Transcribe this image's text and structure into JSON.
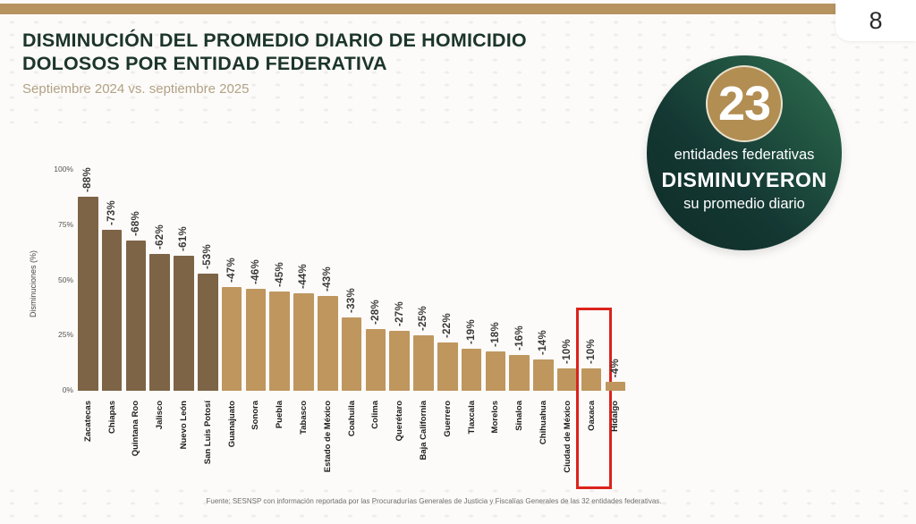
{
  "page": {
    "number": "8"
  },
  "theme": {
    "top_bar_color": "#b7935f",
    "title_color": "#1c352b",
    "subtitle_color": "#b2a185"
  },
  "header": {
    "title_line1": "DISMINUCIÓN DEL PROMEDIO DIARIO DE HOMICIDIO",
    "title_line2": "DOLOSOS POR ENTIDAD FEDERATIVA",
    "subtitle": "Septiembre 2024 vs. septiembre 2025"
  },
  "badge": {
    "count": "23",
    "line1": "entidades federativas",
    "line2": "DISMINUYERON",
    "line3": "su promedio diario",
    "circle_color_dark": "#0f2c27",
    "circle_color_mid": "#143833",
    "circle_color_light": "#2f7050",
    "inner_circle_color": "#b28e52"
  },
  "chart_data": {
    "type": "bar",
    "title": "",
    "xlabel": "",
    "ylabel": "Disminuciones (%)",
    "ylim": [
      0,
      100
    ],
    "yticks": [
      0,
      25,
      50,
      75,
      100
    ],
    "grid": false,
    "legend": false,
    "categories": [
      "Zacatecas",
      "Chiapas",
      "Quintana Roo",
      "Jalisco",
      "Nuevo León",
      "San Luis Potosí",
      "Guanajuato",
      "Sonora",
      "Puebla",
      "Tabasco",
      "Estado de México",
      "Coahuila",
      "Colima",
      "Querétaro",
      "Baja California",
      "Guerrero",
      "Tlaxcala",
      "Morelos",
      "Sinaloa",
      "Chihuahua",
      "Ciudad de México",
      "Oaxaca",
      "Hidalgo"
    ],
    "values": [
      -88,
      -73,
      -68,
      -62,
      -61,
      -53,
      -47,
      -46,
      -45,
      -44,
      -43,
      -33,
      -28,
      -27,
      -25,
      -22,
      -19,
      -18,
      -16,
      -14,
      -10,
      -10,
      -4
    ],
    "bar_color_dark": "#7d6446",
    "bar_color_light": "#bf965e",
    "dark_count": 6,
    "highlighted_state": "Oaxaca",
    "highlight_color": "#db231c"
  },
  "footer": {
    "source": "Fuente: SESNSP con información reportada por las Procuradurías Generales de Justicia y Fiscalías Generales de las 32 entidades federativas."
  }
}
